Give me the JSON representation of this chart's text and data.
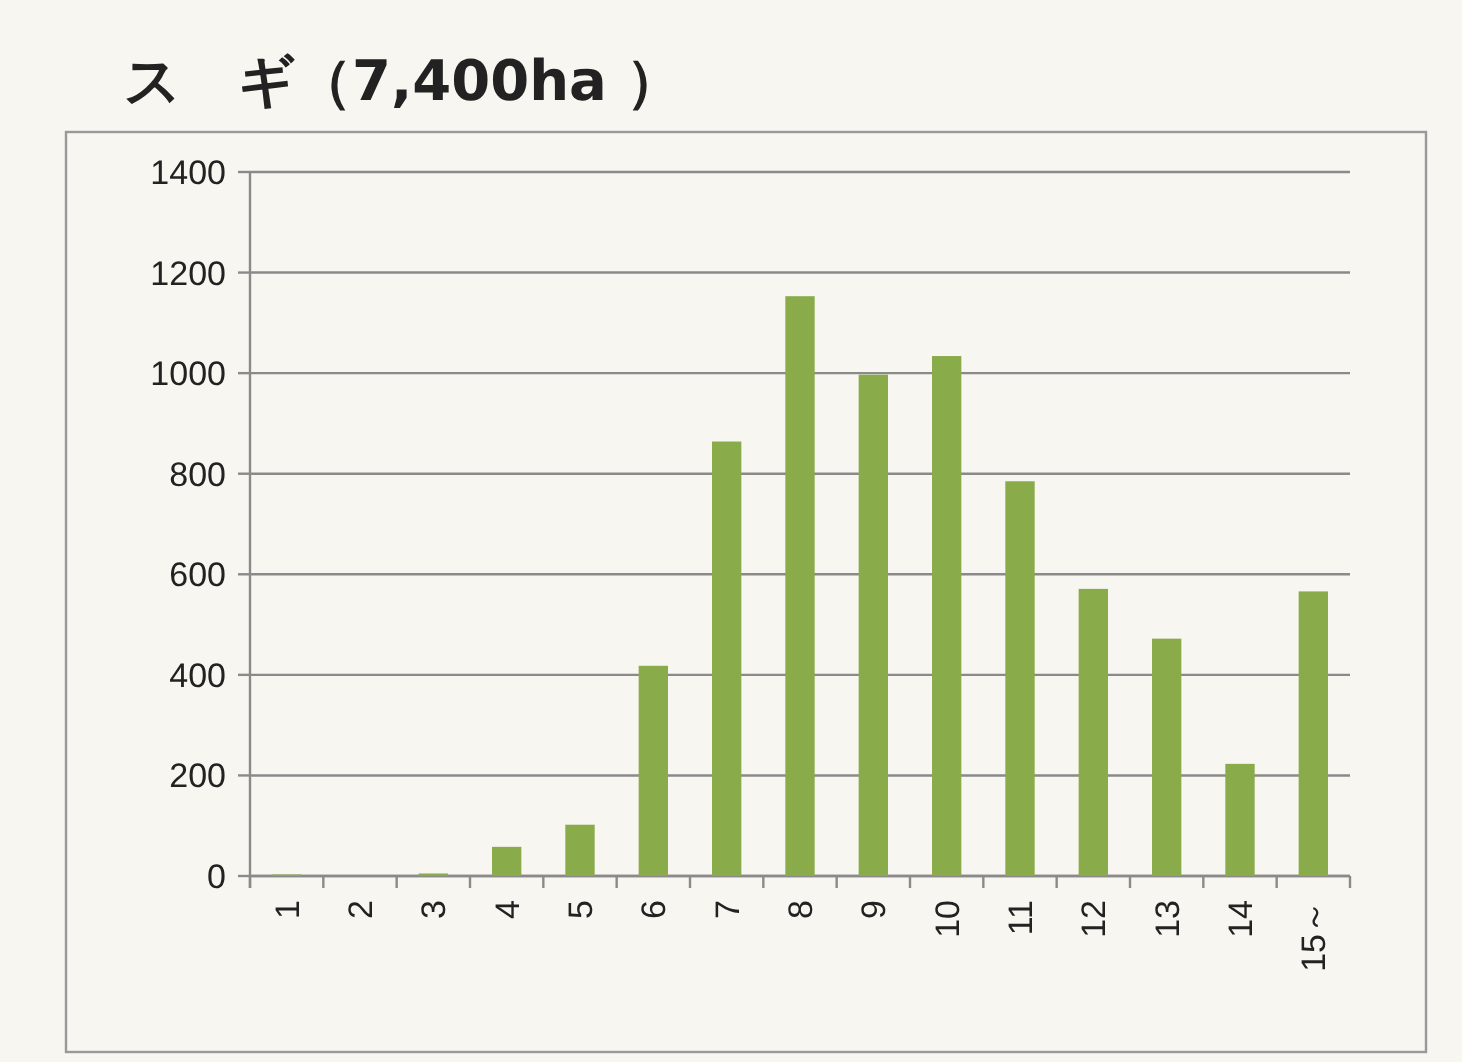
{
  "chart_data": {
    "type": "bar",
    "title": "ス　ギ（7,400ha ）",
    "categories": [
      "1",
      "2",
      "3",
      "4",
      "5",
      "6",
      "7",
      "8",
      "9",
      "10",
      "11",
      "12",
      "13",
      "14",
      "15～"
    ],
    "values": [
      3,
      0,
      5,
      58,
      102,
      418,
      864,
      1153,
      997,
      1034,
      785,
      571,
      472,
      223,
      566
    ],
    "color": "#8aab4a",
    "ylim": [
      0,
      1400
    ],
    "yticks": [
      0,
      200,
      400,
      600,
      800,
      1000,
      1200,
      1400
    ],
    "grid": "y"
  }
}
